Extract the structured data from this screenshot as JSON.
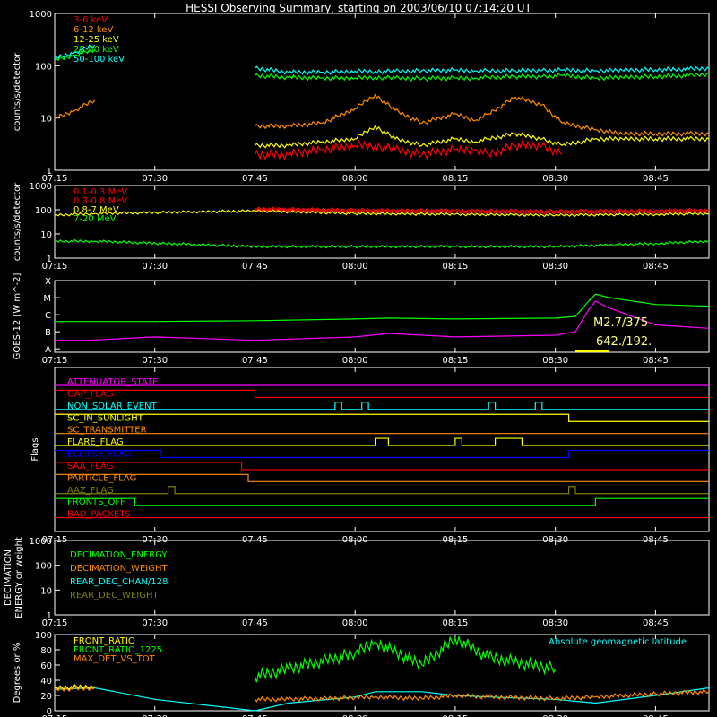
{
  "title": "HESSI Observing Summary, starting on 2003/06/10 07:14:20 UT",
  "x_ticks": [
    "07:15",
    "07:30",
    "07:45",
    "08:00",
    "08:15",
    "08:30",
    "08:45"
  ],
  "chart_data": [
    {
      "type": "line",
      "panel": "light-curves-low-energy",
      "ylabel": "counts/s/detector",
      "yscale": "log",
      "ylim": [
        1,
        1000
      ],
      "y_ticks": [
        "1",
        "10",
        "100",
        "1000"
      ],
      "legend_placement": "top-left",
      "x": [
        "07:15",
        "07:18",
        "07:21",
        "07:43",
        "07:45",
        "07:50",
        "07:55",
        "08:00",
        "08:03",
        "08:06",
        "08:10",
        "08:15",
        "08:18",
        "08:20",
        "08:24",
        "08:28",
        "08:31",
        "08:36",
        "08:40",
        "08:45",
        "08:50",
        "08:53"
      ],
      "series": [
        {
          "name": "3-6 keV",
          "color": "#ff0000",
          "values": [
            null,
            null,
            null,
            null,
            2,
            2,
            2.5,
            3,
            3,
            2.5,
            2,
            2.5,
            2.5,
            2,
            3,
            3,
            2,
            null,
            null,
            null,
            null,
            null
          ]
        },
        {
          "name": "6-12 keV",
          "color": "#ff8c00",
          "values": [
            10,
            14,
            22,
            null,
            7,
            7,
            8,
            15,
            28,
            14,
            8,
            12,
            9,
            12,
            25,
            18,
            8,
            6,
            5,
            5,
            5,
            5
          ]
        },
        {
          "name": "12-25 keV",
          "color": "#ffff00",
          "values": [
            null,
            null,
            null,
            null,
            3,
            3,
            3.5,
            4,
            7,
            4,
            3,
            4,
            3.5,
            4,
            5,
            4,
            3,
            4,
            4,
            4,
            4,
            4
          ]
        },
        {
          "name": "25-50 keV",
          "color": "#00ff00",
          "values": [
            130,
            160,
            200,
            null,
            65,
            60,
            58,
            58,
            60,
            58,
            57,
            58,
            58,
            60,
            62,
            62,
            65,
            58,
            60,
            62,
            65,
            70
          ]
        },
        {
          "name": "50-100 keV",
          "color": "#00ffff",
          "values": [
            140,
            180,
            250,
            null,
            90,
            75,
            75,
            78,
            78,
            78,
            80,
            82,
            80,
            80,
            80,
            82,
            82,
            80,
            82,
            84,
            86,
            90
          ]
        }
      ]
    },
    {
      "type": "line",
      "panel": "light-curves-high-energy",
      "ylabel": "counts/s/detector",
      "yscale": "log",
      "ylim": [
        1,
        1000
      ],
      "y_ticks": [
        "1",
        "10",
        "100",
        "1000"
      ],
      "legend_placement": "top-left",
      "x": [
        "07:15",
        "07:21",
        "07:45",
        "08:00",
        "08:15",
        "08:30",
        "08:45",
        "08:53"
      ],
      "series": [
        {
          "name": "0.1-0.3 MeV",
          "color": "#ff0000",
          "values": [
            null,
            null,
            115,
            100,
            95,
            90,
            95,
            100
          ]
        },
        {
          "name": "0.3-0.8 MeV",
          "color": "#ff0000",
          "values": [
            null,
            null,
            100,
            85,
            80,
            75,
            80,
            85
          ]
        },
        {
          "name": "0.8-7 MeV",
          "color": "#ffff00",
          "values": [
            60,
            70,
            90,
            70,
            65,
            60,
            65,
            70
          ]
        },
        {
          "name": "7-20 MeV",
          "color": "#00ff00",
          "values": [
            5,
            5,
            3,
            3,
            3,
            3,
            4,
            5
          ]
        }
      ]
    },
    {
      "type": "line",
      "panel": "goes-flux",
      "ylabel": "GOES-12 [W m^-2]",
      "yscale": "log",
      "y_ticks": [
        "A",
        "B",
        "C",
        "M",
        "X"
      ],
      "annotations": [
        "M2.7/375",
        "642./192."
      ],
      "x": [
        "07:15",
        "07:20",
        "07:30",
        "07:45",
        "08:00",
        "08:05",
        "08:15",
        "08:30",
        "08:33",
        "08:35",
        "08:36",
        "08:38",
        "08:45",
        "08:53"
      ],
      "series": [
        {
          "name": "GOES low",
          "color": "#00ff00",
          "values": [
            0.6,
            0.6,
            0.6,
            0.65,
            0.75,
            0.8,
            0.75,
            0.8,
            0.9,
            1.8,
            2.2,
            2.0,
            1.6,
            1.5
          ]
        },
        {
          "name": "GOES high",
          "color": "#ff00ff",
          "values": [
            -0.5,
            -0.5,
            -0.3,
            -0.5,
            -0.3,
            -0.1,
            -0.3,
            -0.2,
            0.0,
            1.3,
            1.8,
            1.4,
            0.4,
            0.2
          ]
        }
      ]
    },
    {
      "type": "line",
      "panel": "flags",
      "ylabel": "Flags",
      "flags": [
        {
          "name": "ATTENUATOR_STATE",
          "color": "#ff00ff",
          "segments": [
            [
              "07:15",
              "08:53",
              0
            ]
          ]
        },
        {
          "name": "GAP_FLAG",
          "color": "#ff0000",
          "segments": [
            [
              "07:15",
              "07:45",
              1
            ],
            [
              "07:45",
              "08:53",
              0
            ]
          ]
        },
        {
          "name": "NON_SOLAR_EVENT",
          "color": "#00ffff",
          "segments": [
            [
              "07:15",
              "07:57",
              0
            ],
            [
              "07:57",
              "07:58",
              1
            ],
            [
              "07:58",
              "08:01",
              0
            ],
            [
              "08:01",
              "08:02",
              1
            ],
            [
              "08:02",
              "08:20",
              0
            ],
            [
              "08:20",
              "08:21",
              1
            ],
            [
              "08:21",
              "08:27",
              0
            ],
            [
              "08:27",
              "08:28",
              1
            ],
            [
              "08:28",
              "08:53",
              0
            ]
          ]
        },
        {
          "name": "SC_IN_SUNLIGHT",
          "color": "#ffff00",
          "segments": [
            [
              "07:15",
              "08:32",
              1
            ],
            [
              "08:32",
              "08:53",
              0
            ]
          ]
        },
        {
          "name": "SC_TRANSMITTER",
          "color": "#ff8c00",
          "segments": [
            [
              "07:15",
              "08:53",
              0
            ]
          ]
        },
        {
          "name": "FLARE_FLAG",
          "color": "#ffff00",
          "segments": [
            [
              "07:15",
              "08:03",
              0
            ],
            [
              "08:03",
              "08:05",
              1
            ],
            [
              "08:05",
              "08:15",
              0
            ],
            [
              "08:15",
              "08:16",
              1
            ],
            [
              "08:16",
              "08:21",
              0
            ],
            [
              "08:21",
              "08:25",
              1
            ],
            [
              "08:25",
              "08:53",
              0
            ]
          ]
        },
        {
          "name": "ECLIPSE_FLAG",
          "color": "#0000ff",
          "segments": [
            [
              "07:15",
              "07:31",
              1
            ],
            [
              "07:31",
              "08:32",
              0
            ],
            [
              "08:32",
              "08:53",
              1
            ]
          ]
        },
        {
          "name": "SAA_FLAG",
          "color": "#ff0000",
          "segments": [
            [
              "07:15",
              "07:43",
              1
            ],
            [
              "07:43",
              "08:53",
              0
            ]
          ]
        },
        {
          "name": "PARTICLE_FLAG",
          "color": "#ff8c00",
          "segments": [
            [
              "07:15",
              "07:44",
              1
            ],
            [
              "07:44",
              "08:53",
              0
            ]
          ]
        },
        {
          "name": "AAZ_FLAG",
          "color": "#808000",
          "segments": [
            [
              "07:15",
              "07:32",
              0
            ],
            [
              "07:32",
              "07:33",
              1
            ],
            [
              "07:33",
              "08:32",
              0
            ],
            [
              "08:32",
              "08:33",
              1
            ],
            [
              "08:33",
              "08:53",
              0
            ]
          ]
        },
        {
          "name": "FRONTS_OFF",
          "color": "#00ff00",
          "segments": [
            [
              "07:15",
              "07:27",
              1
            ],
            [
              "07:27",
              "08:36",
              0
            ],
            [
              "08:36",
              "08:53",
              1
            ]
          ]
        },
        {
          "name": "BAD_PACKETS",
          "color": "#ff0000",
          "segments": [
            [
              "07:15",
              "08:53",
              0
            ]
          ]
        }
      ]
    },
    {
      "type": "line",
      "panel": "decimation",
      "ylabel": "DECIMATION ENERGY or weight",
      "ylim": [
        1,
        1000
      ],
      "yscale": "log",
      "y_ticks": [
        "1",
        "10",
        "100",
        "1000"
      ],
      "legend_placement": "top-left",
      "series": [
        {
          "name": "DECIMATION_ENERGY",
          "color": "#00ff00",
          "values": []
        },
        {
          "name": "DECIMATION_WEIGHT",
          "color": "#ff8c00",
          "values": []
        },
        {
          "name": "REAR_DEC_CHAN/128",
          "color": "#00ffff",
          "values": []
        },
        {
          "name": "REAR_DEC_WEIGHT",
          "color": "#808000",
          "values": []
        }
      ]
    },
    {
      "type": "line",
      "panel": "ratios",
      "ylabel": "Degrees or %",
      "ylim": [
        0,
        100
      ],
      "y_ticks": [
        "0",
        "20",
        "40",
        "60",
        "80",
        "100"
      ],
      "legend_placement": "top-left",
      "right_legend": "Absolute geomagnetic latitude",
      "x": [
        "07:15",
        "07:21",
        "07:30",
        "07:45",
        "07:50",
        "08:00",
        "08:03",
        "08:10",
        "08:15",
        "08:20",
        "08:30",
        "08:36",
        "08:45",
        "08:53"
      ],
      "series": [
        {
          "name": "FRONT_RATIO",
          "color": "#ffff00",
          "values": [
            30,
            32,
            null,
            null,
            null,
            null,
            null,
            null,
            null,
            null,
            null,
            null,
            null,
            null
          ]
        },
        {
          "name": "FRONT_RATIO_1225",
          "color": "#00ff00",
          "values": [
            null,
            null,
            null,
            45,
            55,
            75,
            90,
            60,
            95,
            70,
            55,
            null,
            null,
            null
          ]
        },
        {
          "name": "MAX_DET_VS_TOT",
          "color": "#ff8c00",
          "values": [
            28,
            30,
            null,
            15,
            15,
            17,
            18,
            16,
            20,
            18,
            16,
            18,
            22,
            25
          ]
        },
        {
          "name": "Absolute geomagnetic latitude",
          "color": "#00ffff",
          "values": [
            28,
            30,
            15,
            0,
            10,
            18,
            25,
            25,
            20,
            18,
            15,
            10,
            20,
            30
          ]
        }
      ]
    }
  ]
}
